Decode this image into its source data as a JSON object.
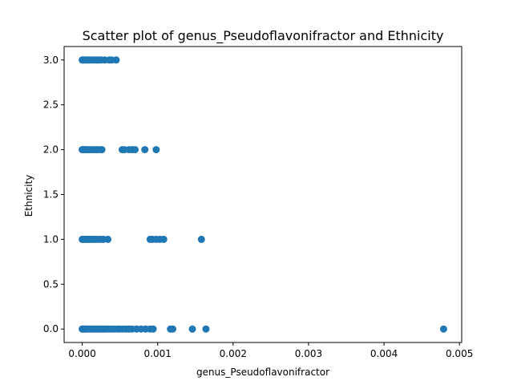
{
  "chart_data": {
    "type": "scatter",
    "title": "Scatter plot of genus_Pseudoflavonifractor and Ethnicity",
    "xlabel": "genus_Pseudoflavonifractor",
    "ylabel": "Ethnicity",
    "xlim": [
      -0.00024,
      0.00503
    ],
    "ylim": [
      -0.15,
      3.15
    ],
    "xticks": [
      0.0,
      0.001,
      0.002,
      0.003,
      0.004,
      0.005
    ],
    "xtick_labels": [
      "0.000",
      "0.001",
      "0.002",
      "0.003",
      "0.004",
      "0.005"
    ],
    "yticks": [
      0.0,
      0.5,
      1.0,
      1.5,
      2.0,
      2.5,
      3.0
    ],
    "ytick_labels": [
      "0.0",
      "0.5",
      "1.0",
      "1.5",
      "2.0",
      "2.5",
      "3.0"
    ],
    "grid": false,
    "marker_color": "#1f77b4",
    "series": [
      {
        "values_by_level": [
          {
            "y": 3,
            "x": [
              0.0,
              1e-05,
              2e-05,
              4e-05,
              6e-05,
              8e-05,
              0.0001,
              0.00012,
              0.00015,
              0.00018,
              0.0002,
              0.00022,
              0.00025,
              0.0003,
              0.00036,
              0.00039,
              0.00045
            ]
          },
          {
            "y": 2,
            "x": [
              0.0,
              1e-05,
              2e-05,
              3e-05,
              5e-05,
              7e-05,
              0.0001,
              0.00013,
              0.00016,
              0.00019,
              0.00022,
              0.00026,
              0.00053,
              0.00056,
              0.00062,
              0.00066,
              0.0007,
              0.00083,
              0.00098
            ]
          },
          {
            "y": 1,
            "x": [
              0.0,
              1e-05,
              2e-05,
              3e-05,
              5e-05,
              7e-05,
              9e-05,
              0.00011,
              0.00014,
              0.00017,
              0.0002,
              0.00024,
              0.00028,
              0.00034,
              0.0009,
              0.00093,
              0.00098,
              0.00103,
              0.00108,
              0.00158
            ]
          },
          {
            "y": 0,
            "x": [
              0.0,
              1e-05,
              2e-05,
              3e-05,
              4e-05,
              6e-05,
              8e-05,
              0.0001,
              0.00012,
              0.00014,
              0.00016,
              0.00018,
              0.0002,
              0.00022,
              0.00024,
              0.00026,
              0.00028,
              0.0003,
              0.00033,
              0.00036,
              0.0004,
              0.00043,
              0.00047,
              0.0005,
              0.00054,
              0.00058,
              0.00062,
              0.00066,
              0.00072,
              0.00078,
              0.00084,
              0.0009,
              0.00094,
              0.00117,
              0.0012,
              0.00146,
              0.00164,
              0.00479
            ]
          }
        ]
      }
    ]
  }
}
